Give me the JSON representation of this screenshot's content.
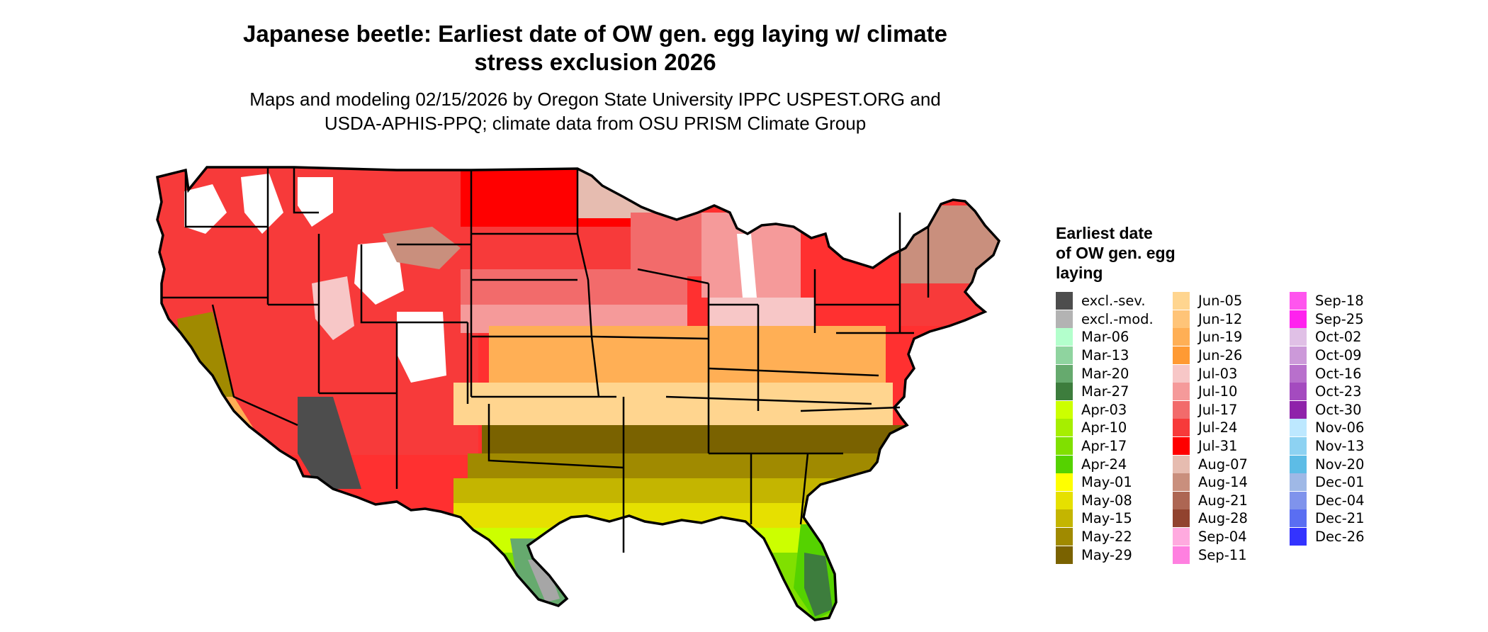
{
  "title": {
    "line1": "Japanese beetle: Earliest date of OW gen. egg laying w/ climate",
    "line2": "stress exclusion 2026"
  },
  "subtitle": {
    "line1": "Maps and modeling 02/15/2026 by Oregon State University IPPC USPEST.ORG and",
    "line2": "USDA-APHIS-PPQ; climate data from OSU PRISM Climate Group"
  },
  "legend": {
    "title_lines": [
      "Earliest date",
      "of OW gen. egg",
      "laying"
    ],
    "columns": [
      [
        {
          "label": "excl.-sev.",
          "color": "#4d4d4d"
        },
        {
          "label": "excl.-mod.",
          "color": "#b3b3b3"
        },
        {
          "label": "Mar-06",
          "color": "#b3ffcc"
        },
        {
          "label": "Mar-13",
          "color": "#8fd49f"
        },
        {
          "label": "Mar-20",
          "color": "#66aa6e"
        },
        {
          "label": "Mar-27",
          "color": "#3d7d3d"
        },
        {
          "label": "Apr-03",
          "color": "#ccff00"
        },
        {
          "label": "Apr-10",
          "color": "#a6ee00"
        },
        {
          "label": "Apr-17",
          "color": "#80e000"
        },
        {
          "label": "Apr-24",
          "color": "#55d200"
        },
        {
          "label": "May-01",
          "color": "#ffff00"
        },
        {
          "label": "May-08",
          "color": "#e6e000"
        },
        {
          "label": "May-15",
          "color": "#c4b500"
        },
        {
          "label": "May-22",
          "color": "#a08a00"
        },
        {
          "label": "May-29",
          "color": "#7a6200"
        }
      ],
      [
        {
          "label": "Jun-05",
          "color": "#ffd58f"
        },
        {
          "label": "Jun-12",
          "color": "#ffc478"
        },
        {
          "label": "Jun-19",
          "color": "#ffaf55"
        },
        {
          "label": "Jun-26",
          "color": "#ff9a33"
        },
        {
          "label": "Jul-03",
          "color": "#f7c7c7"
        },
        {
          "label": "Jul-10",
          "color": "#f59a9a"
        },
        {
          "label": "Jul-17",
          "color": "#f26b6b"
        },
        {
          "label": "Jul-24",
          "color": "#f73a3a"
        },
        {
          "label": "Jul-31",
          "color": "#ff0000"
        },
        {
          "label": "Aug-07",
          "color": "#e6bcb0"
        },
        {
          "label": "Aug-14",
          "color": "#c98f7d"
        },
        {
          "label": "Aug-21",
          "color": "#ad6653"
        },
        {
          "label": "Aug-28",
          "color": "#91432f"
        },
        {
          "label": "Sep-04",
          "color": "#ffaadf"
        },
        {
          "label": "Sep-11",
          "color": "#ff80e0"
        }
      ],
      [
        {
          "label": "Sep-18",
          "color": "#ff55ee"
        },
        {
          "label": "Sep-25",
          "color": "#ff22ee"
        },
        {
          "label": "Oct-02",
          "color": "#e0c0e6"
        },
        {
          "label": "Oct-09",
          "color": "#cc99d9"
        },
        {
          "label": "Oct-16",
          "color": "#b870cc"
        },
        {
          "label": "Oct-23",
          "color": "#a44bbf"
        },
        {
          "label": "Oct-30",
          "color": "#8f22aa"
        },
        {
          "label": "Nov-06",
          "color": "#bde8ff"
        },
        {
          "label": "Nov-13",
          "color": "#8dd2f2"
        },
        {
          "label": "Nov-20",
          "color": "#5dbce6"
        },
        {
          "label": "Dec-01",
          "color": "#9fb8e6"
        },
        {
          "label": "Dec-04",
          "color": "#7f93ec"
        },
        {
          "label": "Dec-21",
          "color": "#5a6ef2"
        },
        {
          "label": "Dec-26",
          "color": "#3333ff"
        }
      ]
    ]
  }
}
